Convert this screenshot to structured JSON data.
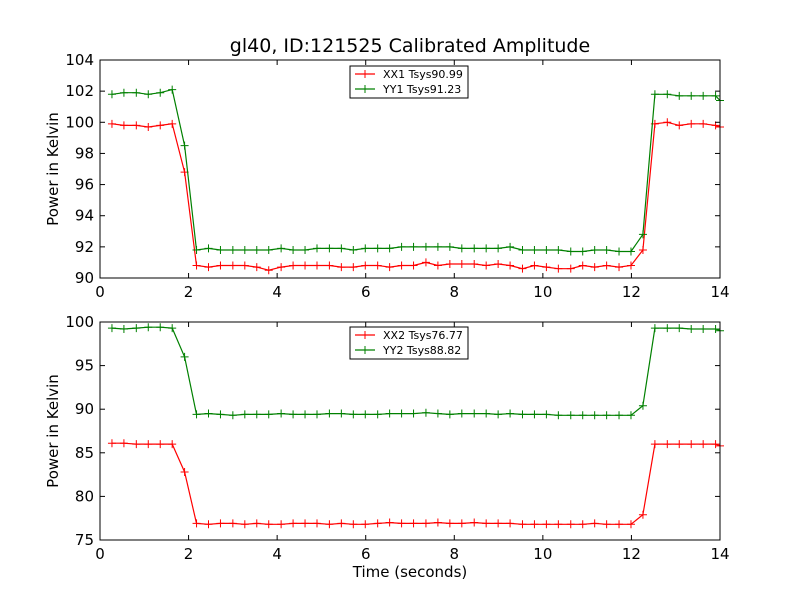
{
  "chart_data": [
    {
      "type": "line",
      "title": "gl40, ID:121525 Calibrated Amplitude",
      "xlabel": "",
      "ylabel": "Power in Kelvin",
      "xlim": [
        0,
        14
      ],
      "ylim": [
        90,
        104
      ],
      "xticks": [
        "0",
        "2",
        "4",
        "6",
        "8",
        "10",
        "12",
        "14"
      ],
      "yticks": [
        "90",
        "92",
        "94",
        "96",
        "98",
        "100",
        "102",
        "104"
      ],
      "grid": false,
      "legend": "top-center",
      "x": [
        0.27,
        0.54,
        0.82,
        1.09,
        1.36,
        1.63,
        1.91,
        2.18,
        2.45,
        2.72,
        3.0,
        3.27,
        3.54,
        3.81,
        4.09,
        4.36,
        4.63,
        4.9,
        5.18,
        5.45,
        5.72,
        5.99,
        6.27,
        6.54,
        6.81,
        7.08,
        7.36,
        7.63,
        7.9,
        8.17,
        8.45,
        8.72,
        8.99,
        9.26,
        9.54,
        9.81,
        10.08,
        10.35,
        10.63,
        10.9,
        11.17,
        11.44,
        11.72,
        11.99,
        12.26,
        12.53,
        12.81,
        13.08,
        13.35,
        13.62,
        13.9,
        14.0
      ],
      "series": [
        {
          "name": "XX1 Tsys90.99",
          "color": "#ff0000",
          "values": [
            99.9,
            99.8,
            99.8,
            99.7,
            99.8,
            99.9,
            96.8,
            90.8,
            90.7,
            90.8,
            90.8,
            90.8,
            90.7,
            90.5,
            90.7,
            90.8,
            90.8,
            90.8,
            90.8,
            90.7,
            90.7,
            90.8,
            90.8,
            90.7,
            90.8,
            90.8,
            91.0,
            90.8,
            90.9,
            90.9,
            90.9,
            90.8,
            90.9,
            90.8,
            90.6,
            90.8,
            90.7,
            90.6,
            90.6,
            90.8,
            90.7,
            90.8,
            90.7,
            90.8,
            91.8,
            99.9,
            100.0,
            99.8,
            99.9,
            99.9,
            99.8,
            99.7
          ]
        },
        {
          "name": "YY1 Tsys91.23",
          "color": "#008000",
          "values": [
            101.8,
            101.9,
            101.9,
            101.8,
            101.9,
            102.1,
            98.5,
            91.8,
            91.9,
            91.8,
            91.8,
            91.8,
            91.8,
            91.8,
            91.9,
            91.8,
            91.8,
            91.9,
            91.9,
            91.9,
            91.8,
            91.9,
            91.9,
            91.9,
            92.0,
            92.0,
            92.0,
            92.0,
            92.0,
            91.9,
            91.9,
            91.9,
            91.9,
            92.0,
            91.8,
            91.8,
            91.8,
            91.8,
            91.7,
            91.7,
            91.8,
            91.8,
            91.7,
            91.7,
            92.8,
            101.8,
            101.8,
            101.7,
            101.7,
            101.7,
            101.7,
            101.4
          ]
        }
      ]
    },
    {
      "type": "line",
      "title": "",
      "xlabel": "Time (seconds)",
      "ylabel": "Power in Kelvin",
      "xlim": [
        0,
        14
      ],
      "ylim": [
        75,
        100
      ],
      "xticks": [
        "0",
        "2",
        "4",
        "6",
        "8",
        "10",
        "12",
        "14"
      ],
      "yticks": [
        "75",
        "80",
        "85",
        "90",
        "95",
        "100"
      ],
      "grid": false,
      "legend": "top-center",
      "x": [
        0.27,
        0.54,
        0.82,
        1.09,
        1.36,
        1.63,
        1.91,
        2.18,
        2.45,
        2.72,
        3.0,
        3.27,
        3.54,
        3.81,
        4.09,
        4.36,
        4.63,
        4.9,
        5.18,
        5.45,
        5.72,
        5.99,
        6.27,
        6.54,
        6.81,
        7.08,
        7.36,
        7.63,
        7.9,
        8.17,
        8.45,
        8.72,
        8.99,
        9.26,
        9.54,
        9.81,
        10.08,
        10.35,
        10.63,
        10.9,
        11.17,
        11.44,
        11.72,
        11.99,
        12.26,
        12.53,
        12.81,
        13.08,
        13.35,
        13.62,
        13.9,
        14.0
      ],
      "series": [
        {
          "name": "XX2 Tsys76.77",
          "color": "#ff0000",
          "values": [
            86.1,
            86.1,
            86.0,
            86.0,
            86.0,
            86.0,
            82.8,
            76.9,
            76.8,
            76.9,
            76.9,
            76.8,
            76.9,
            76.8,
            76.8,
            76.9,
            76.9,
            76.9,
            76.8,
            76.9,
            76.8,
            76.8,
            76.9,
            77.0,
            76.9,
            76.9,
            76.9,
            77.0,
            76.9,
            76.9,
            77.0,
            76.9,
            76.9,
            76.9,
            76.8,
            76.8,
            76.8,
            76.8,
            76.8,
            76.8,
            76.9,
            76.8,
            76.8,
            76.8,
            77.9,
            86.0,
            86.0,
            86.0,
            86.0,
            86.0,
            86.0,
            85.8
          ]
        },
        {
          "name": "YY2 Tsys88.82",
          "color": "#008000",
          "values": [
            99.3,
            99.2,
            99.3,
            99.4,
            99.4,
            99.3,
            96.0,
            89.4,
            89.5,
            89.4,
            89.3,
            89.4,
            89.4,
            89.4,
            89.5,
            89.4,
            89.4,
            89.4,
            89.5,
            89.5,
            89.4,
            89.4,
            89.4,
            89.5,
            89.5,
            89.5,
            89.6,
            89.5,
            89.4,
            89.5,
            89.5,
            89.5,
            89.4,
            89.5,
            89.4,
            89.4,
            89.4,
            89.3,
            89.3,
            89.3,
            89.3,
            89.3,
            89.3,
            89.3,
            90.4,
            99.3,
            99.3,
            99.3,
            99.2,
            99.2,
            99.2,
            99.0
          ]
        }
      ]
    }
  ]
}
